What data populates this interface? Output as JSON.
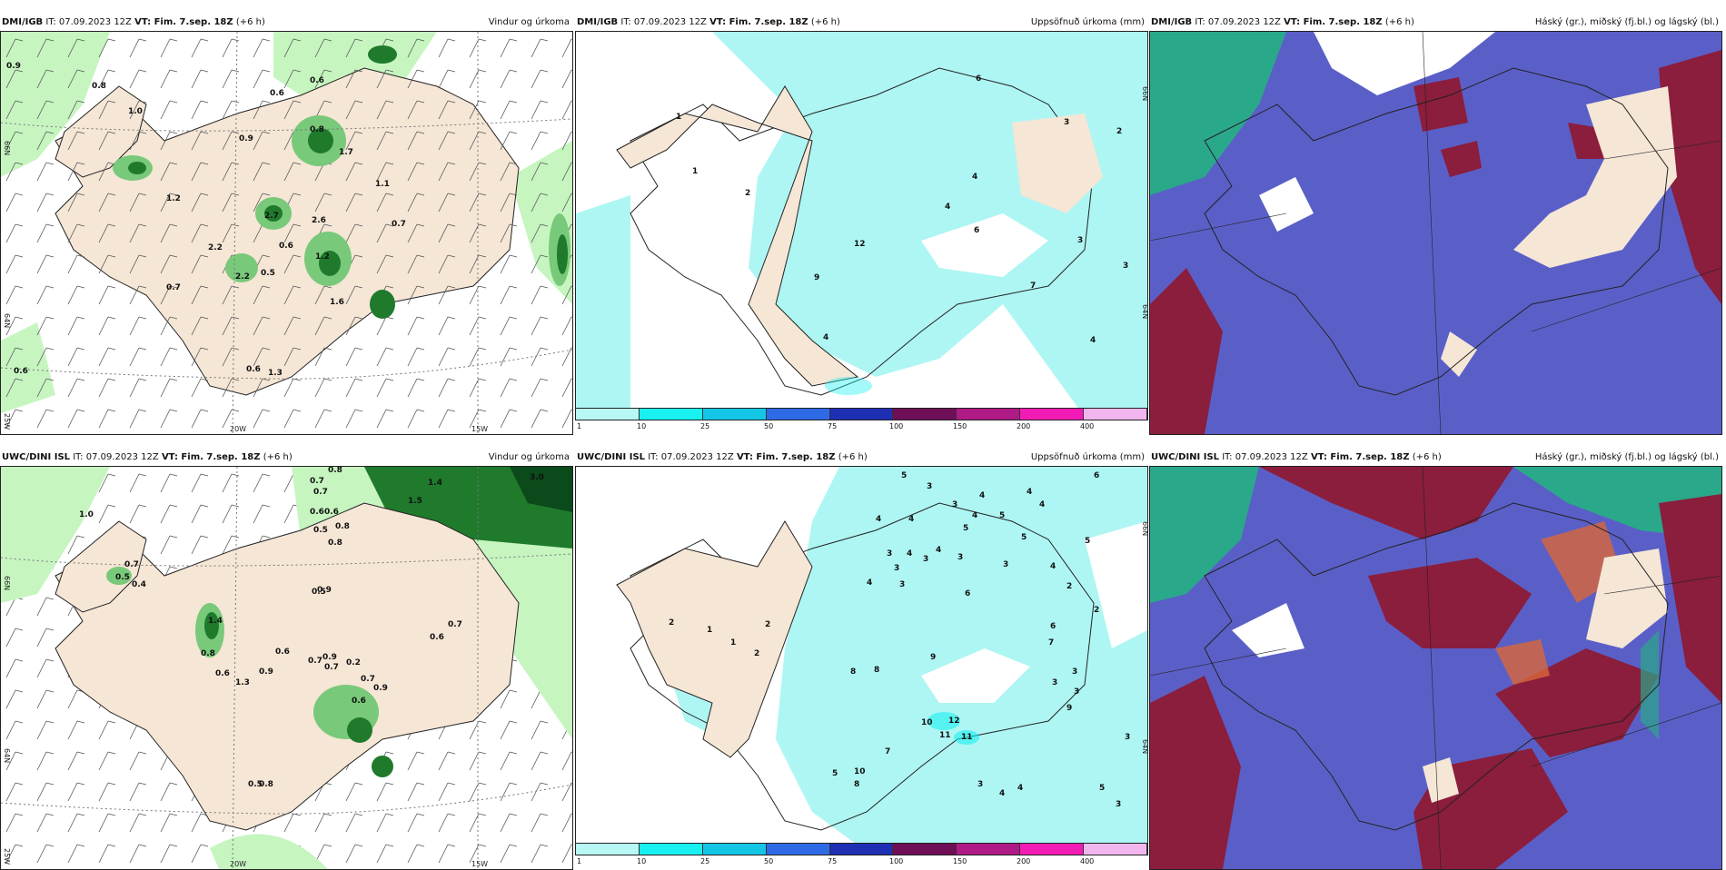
{
  "colors": {
    "land": "#f5e6d6",
    "sea_white": "#ffffff",
    "precip_light": "#c6f5c0",
    "precip_mid": "#79c97a",
    "precip_dark": "#1f7a2c",
    "cyan": "#aef6f3",
    "cloud_blue": "#5a5fc7",
    "cloud_red": "#8b1d3d",
    "cloud_green": "#2aa88a"
  },
  "colorbar": {
    "colors": [
      "#b7f7f4",
      "#19f0f0",
      "#14c6e6",
      "#2f6ae6",
      "#1f2fb4",
      "#6e0f57",
      "#b01a86",
      "#f21bb6",
      "#f2b6ee"
    ],
    "ticks": [
      "1",
      "10",
      "25",
      "50",
      "75",
      "100",
      "150",
      "200",
      "400"
    ]
  },
  "axes": {
    "lat_66": "66N",
    "lat_64": "64N",
    "lon_20": "20W",
    "lon_15": "15W",
    "lon_25": "25W"
  },
  "panels": [
    {
      "source": "DMI/IGB",
      "it": "IT: 07.09.2023 12Z",
      "vt": "VT: Fim. 7.sep. 18Z",
      "lead": "(+6 h)",
      "title": "Vindur og úrkoma",
      "labels": [
        "0.9",
        "0.8",
        "1.0",
        "0.6",
        "0.6",
        "0.9",
        "0.8",
        "1.7",
        "1.1",
        "1.2",
        "2.7",
        "2.2",
        "0.7",
        "2.6",
        "0.6",
        "1.2",
        "0.5",
        "2.2",
        "0.7",
        "1.6",
        "0.6",
        "1.3",
        "0.6"
      ]
    },
    {
      "source": "DMI/IGB",
      "it": "IT: 07.09.2023 12Z",
      "vt": "VT: Fim. 7.sep. 18Z",
      "lead": "(+6 h)",
      "title": "Uppsöfnuð úrkoma (mm)",
      "labels": [
        "6",
        "1",
        "2",
        "1",
        "2",
        "4",
        "4",
        "6",
        "3",
        "3",
        "12",
        "9",
        "7",
        "4",
        "4",
        "3"
      ]
    },
    {
      "source": "DMI/IGB",
      "it": "IT: 07.09.2023 12Z",
      "vt": "VT: Fim. 7.sep. 18Z",
      "lead": "(+6 h)",
      "title": "Háský (gr.), miðský (fj.bl.) og lágský (bl.)"
    },
    {
      "source": "UWC/DINI ISL",
      "it": "IT: 07.09.2023 12Z",
      "vt": "VT: Fim. 7.sep. 18Z",
      "lead": "(+6 h)",
      "title": "Vindur og úrkoma",
      "labels": [
        "1.0",
        "0.7",
        "0.7",
        "0.8",
        "1.5",
        "1.4",
        "3.0",
        "0.6",
        "0.6",
        "0.8",
        "0.5",
        "0.8",
        "0.7",
        "0.5",
        "0.4",
        "0.9",
        "0.5",
        "1.4",
        "0.7",
        "0.6",
        "0.8",
        "0.6",
        "0.9",
        "0.7",
        "0.7",
        "0.2",
        "0.9",
        "0.6",
        "0.9",
        "1.3",
        "0.7",
        "0.5",
        "0.8",
        "0.6"
      ]
    },
    {
      "source": "UWC/DINI ISL",
      "it": "IT: 07.09.2023 12Z",
      "vt": "VT: Fim. 7.sep. 18Z",
      "lead": "(+6 h)",
      "title": "Uppsöfnuð úrkoma (mm)",
      "labels": [
        "5",
        "3",
        "6",
        "4",
        "4",
        "4",
        "3",
        "4",
        "5",
        "4",
        "4",
        "5",
        "5",
        "5",
        "3",
        "4",
        "3",
        "3",
        "4",
        "3",
        "3",
        "4",
        "2",
        "4",
        "6",
        "3",
        "2",
        "1",
        "2",
        "1",
        "2",
        "6",
        "7",
        "9",
        "8",
        "8",
        "12",
        "10",
        "11",
        "11",
        "9",
        "7",
        "5",
        "8",
        "10",
        "4",
        "3",
        "4",
        "5",
        "3",
        "3",
        "2",
        "3",
        "3",
        "3"
      ]
    },
    {
      "source": "UWC/DINI ISL",
      "it": "IT: 07.09.2023 12Z",
      "vt": "VT: Fim. 7.sep. 18Z",
      "lead": "(+6 h)",
      "title": "Háský (gr.), miðský (fj.bl.) og lágský (bl.)"
    }
  ]
}
